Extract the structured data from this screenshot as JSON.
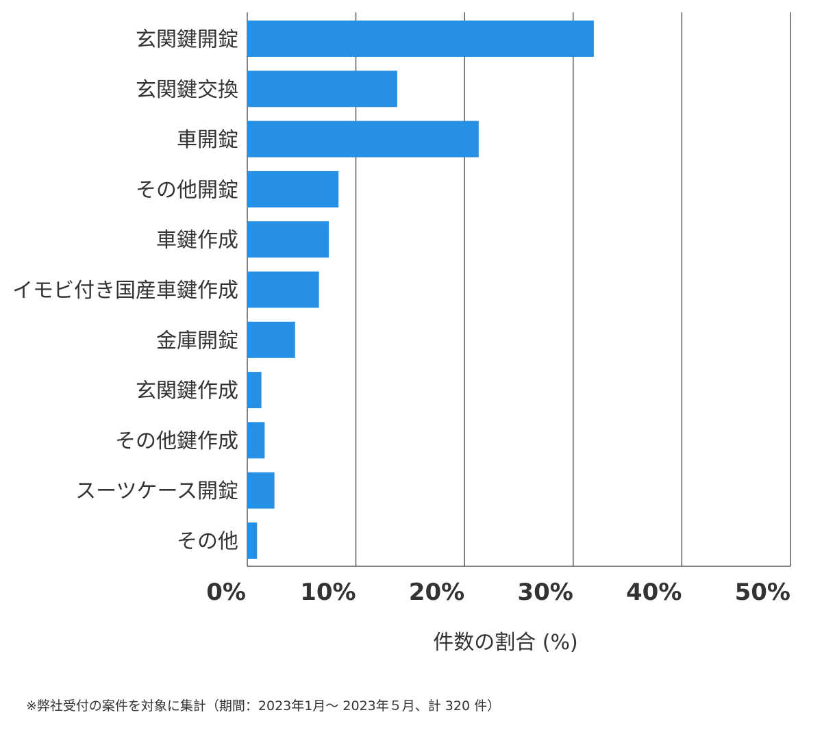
{
  "chart_data": {
    "type": "bar",
    "orientation": "horizontal",
    "categories": [
      "玄関鍵開錠",
      "玄関鍵交換",
      "車開錠",
      "その他開錠",
      "車鍵作成",
      "イモビ付き国産車鍵作成",
      "金庫開錠",
      "玄関鍵作成",
      "その他鍵作成",
      "スーツケース開錠",
      "その他"
    ],
    "values": [
      31.9,
      13.8,
      21.3,
      8.4,
      7.5,
      6.6,
      4.4,
      1.3,
      1.6,
      2.5,
      0.9
    ],
    "xlim": [
      0,
      50
    ],
    "xticks": [
      0,
      10,
      20,
      30,
      40,
      50
    ],
    "xtick_labels": [
      "0%",
      "10%",
      "20%",
      "30%",
      "40%",
      "50%"
    ],
    "xlabel": "件数の割合 (%)",
    "grid": true,
    "bar_color": "#2690e5",
    "grid_color": "#333333"
  },
  "footnote": "※弊社受付の案件を対象に集計（期間：2023年1月～ 2023年５月、計 320 件）"
}
